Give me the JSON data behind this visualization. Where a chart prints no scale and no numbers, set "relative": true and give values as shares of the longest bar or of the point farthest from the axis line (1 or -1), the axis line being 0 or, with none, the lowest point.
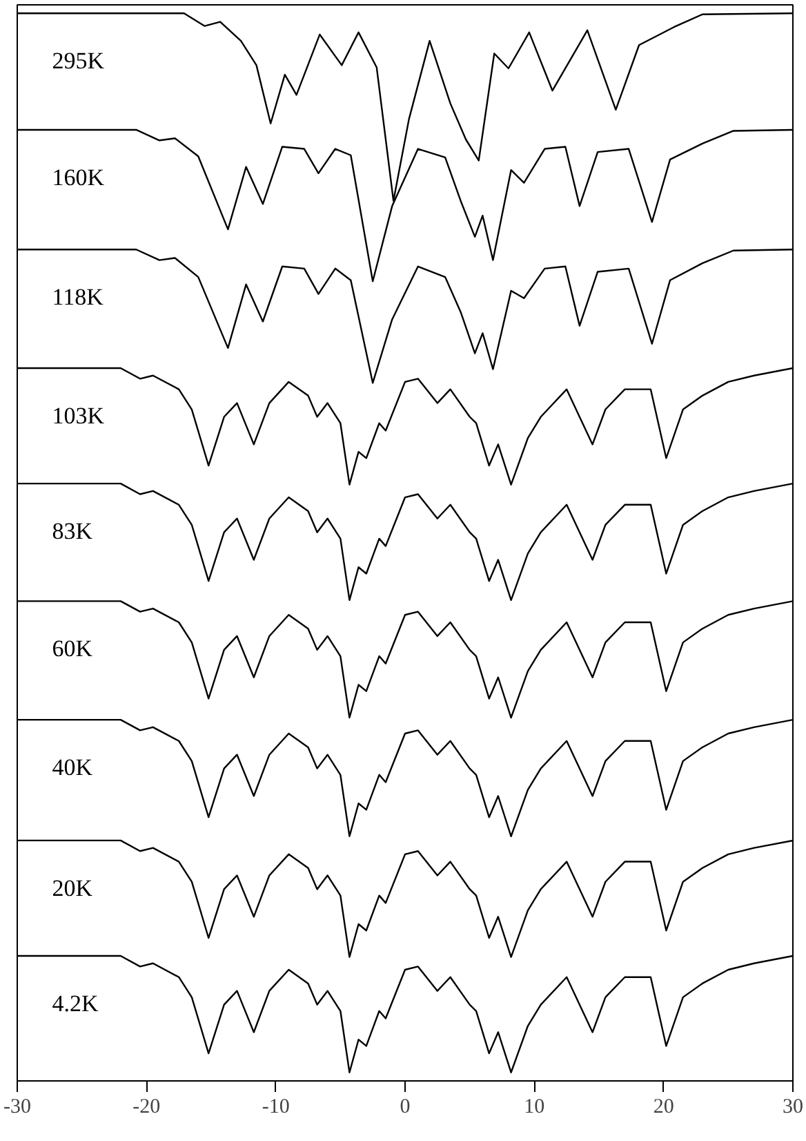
{
  "chart_data": {
    "type": "line",
    "relative": true,
    "xlim": [
      -30,
      30
    ],
    "xticks": [
      -30,
      -20,
      -10,
      0,
      10,
      20,
      30
    ],
    "tick_labels": "x",
    "grid": false,
    "legend": false,
    "marker": "none",
    "line_style": "solid",
    "x": [
      -30,
      -22,
      -20.5,
      -19.5,
      -17.5,
      -16.5,
      -15.2,
      -14,
      -13,
      -11.7,
      -10.5,
      -9,
      -7.5,
      -6.8,
      -6,
      -5,
      -4.3,
      -3.6,
      -3,
      -2,
      -1.5,
      0,
      1,
      2.5,
      3.5,
      5,
      5.5,
      6.5,
      7.2,
      8.2,
      9.5,
      10.5,
      12.5,
      14.5,
      15.5,
      17,
      19,
      20.2,
      21.5,
      23,
      25,
      27,
      30
    ],
    "series": [
      {
        "name": "295K",
        "color": "#000000",
        "x": [
          -30,
          -17.1,
          -15.5,
          -14.3,
          -12.7,
          -11.5,
          -10.4,
          -9.3,
          -8.4,
          -6.6,
          -4.9,
          -3.6,
          -2.2,
          -0.9,
          0.3,
          1.9,
          3.5,
          4.7,
          5.7,
          6.9,
          8.0,
          9.6,
          11.4,
          14.1,
          16.3,
          18.1,
          20.8,
          23.0,
          30
        ],
        "values": [
          1.0,
          1.0,
          0.988,
          0.992,
          0.974,
          0.951,
          0.896,
          0.942,
          0.923,
          0.98,
          0.951,
          0.982,
          0.949,
          0.823,
          0.9,
          0.974,
          0.915,
          0.881,
          0.861,
          0.962,
          0.948,
          0.982,
          0.927,
          0.984,
          0.909,
          0.97,
          0.987,
          0.999,
          1.0
        ]
      },
      {
        "name": "160K",
        "color": "#000000",
        "x": [
          -30,
          -20.8,
          -19,
          -17.8,
          -16,
          -13.7,
          -12.3,
          -11,
          -9.5,
          -7.8,
          -6.7,
          -5.4,
          -4.2,
          -2.5,
          -1.0,
          1.0,
          3.1,
          4.3,
          5.4,
          6.0,
          6.8,
          8.2,
          9.2,
          10.8,
          12.4,
          13.5,
          14.9,
          17.3,
          19.1,
          20.5,
          23,
          25.4,
          30
        ],
        "values": [
          0.89,
          0.89,
          0.88,
          0.882,
          0.865,
          0.796,
          0.855,
          0.82,
          0.874,
          0.872,
          0.849,
          0.872,
          0.866,
          0.747,
          0.818,
          0.872,
          0.864,
          0.823,
          0.789,
          0.809,
          0.767,
          0.852,
          0.84,
          0.872,
          0.874,
          0.818,
          0.869,
          0.872,
          0.803,
          0.862,
          0.877,
          0.889,
          0.89
        ]
      },
      {
        "name": "118K",
        "color": "#000000",
        "x": [
          -30,
          -20.8,
          -19,
          -17.8,
          -16,
          -13.7,
          -12.3,
          -11,
          -9.5,
          -7.8,
          -6.7,
          -5.4,
          -4.2,
          -2.5,
          -1.0,
          1.0,
          3.1,
          4.3,
          5.4,
          6.0,
          6.8,
          8.2,
          9.2,
          10.8,
          12.4,
          13.5,
          14.9,
          17.3,
          19.1,
          20.5,
          23,
          25.4,
          30
        ],
        "values": [
          0.777,
          0.777,
          0.767,
          0.769,
          0.751,
          0.684,
          0.744,
          0.709,
          0.761,
          0.759,
          0.735,
          0.759,
          0.748,
          0.651,
          0.711,
          0.761,
          0.751,
          0.718,
          0.679,
          0.698,
          0.664,
          0.738,
          0.731,
          0.759,
          0.761,
          0.705,
          0.756,
          0.759,
          0.688,
          0.748,
          0.764,
          0.776,
          0.777
        ]
      },
      {
        "name": "103K",
        "color": "#000000",
        "values": [
          0.665,
          0.665,
          0.655,
          0.658,
          0.645,
          0.626,
          0.573,
          0.619,
          0.632,
          0.593,
          0.632,
          0.652,
          0.639,
          0.619,
          0.632,
          0.613,
          0.555,
          0.586,
          0.58,
          0.613,
          0.606,
          0.652,
          0.655,
          0.632,
          0.645,
          0.619,
          0.613,
          0.573,
          0.593,
          0.555,
          0.599,
          0.619,
          0.645,
          0.593,
          0.626,
          0.645,
          0.645,
          0.58,
          0.626,
          0.639,
          0.652,
          0.658,
          0.665
        ]
      },
      {
        "name": "83K",
        "color": "#000000",
        "values": [
          0.556,
          0.556,
          0.546,
          0.549,
          0.536,
          0.517,
          0.464,
          0.51,
          0.523,
          0.484,
          0.523,
          0.543,
          0.53,
          0.51,
          0.523,
          0.504,
          0.446,
          0.477,
          0.471,
          0.504,
          0.497,
          0.543,
          0.546,
          0.523,
          0.536,
          0.51,
          0.504,
          0.464,
          0.484,
          0.446,
          0.49,
          0.51,
          0.536,
          0.484,
          0.517,
          0.536,
          0.536,
          0.471,
          0.517,
          0.53,
          0.543,
          0.549,
          0.556
        ]
      },
      {
        "name": "60K",
        "color": "#000000",
        "values": [
          0.445,
          0.445,
          0.435,
          0.438,
          0.425,
          0.406,
          0.353,
          0.399,
          0.412,
          0.373,
          0.412,
          0.432,
          0.419,
          0.399,
          0.412,
          0.393,
          0.335,
          0.366,
          0.36,
          0.393,
          0.386,
          0.432,
          0.435,
          0.412,
          0.425,
          0.399,
          0.393,
          0.353,
          0.373,
          0.335,
          0.379,
          0.399,
          0.425,
          0.373,
          0.406,
          0.425,
          0.425,
          0.36,
          0.406,
          0.419,
          0.432,
          0.438,
          0.445
        ]
      },
      {
        "name": "40K",
        "color": "#000000",
        "values": [
          0.333,
          0.333,
          0.323,
          0.326,
          0.313,
          0.294,
          0.241,
          0.287,
          0.3,
          0.261,
          0.3,
          0.32,
          0.307,
          0.287,
          0.3,
          0.281,
          0.223,
          0.254,
          0.248,
          0.281,
          0.274,
          0.32,
          0.323,
          0.3,
          0.313,
          0.287,
          0.281,
          0.241,
          0.261,
          0.223,
          0.267,
          0.287,
          0.313,
          0.261,
          0.294,
          0.313,
          0.313,
          0.248,
          0.294,
          0.307,
          0.32,
          0.326,
          0.333
        ]
      },
      {
        "name": "20K",
        "color": "#000000",
        "values": [
          0.219,
          0.219,
          0.209,
          0.212,
          0.199,
          0.18,
          0.127,
          0.173,
          0.186,
          0.147,
          0.186,
          0.206,
          0.193,
          0.173,
          0.186,
          0.167,
          0.109,
          0.14,
          0.134,
          0.167,
          0.16,
          0.206,
          0.209,
          0.186,
          0.199,
          0.173,
          0.167,
          0.127,
          0.147,
          0.109,
          0.153,
          0.173,
          0.199,
          0.147,
          0.18,
          0.199,
          0.199,
          0.134,
          0.18,
          0.193,
          0.206,
          0.212,
          0.219
        ]
      },
      {
        "name": "4.2K",
        "color": "#000000",
        "values": [
          0.11,
          0.11,
          0.1,
          0.103,
          0.09,
          0.071,
          0.018,
          0.064,
          0.077,
          0.038,
          0.077,
          0.097,
          0.084,
          0.064,
          0.077,
          0.058,
          0.0,
          0.031,
          0.025,
          0.058,
          0.051,
          0.097,
          0.1,
          0.077,
          0.09,
          0.064,
          0.058,
          0.018,
          0.038,
          0.0,
          0.044,
          0.064,
          0.09,
          0.038,
          0.071,
          0.09,
          0.09,
          0.025,
          0.071,
          0.084,
          0.097,
          0.103,
          0.11
        ]
      }
    ]
  }
}
